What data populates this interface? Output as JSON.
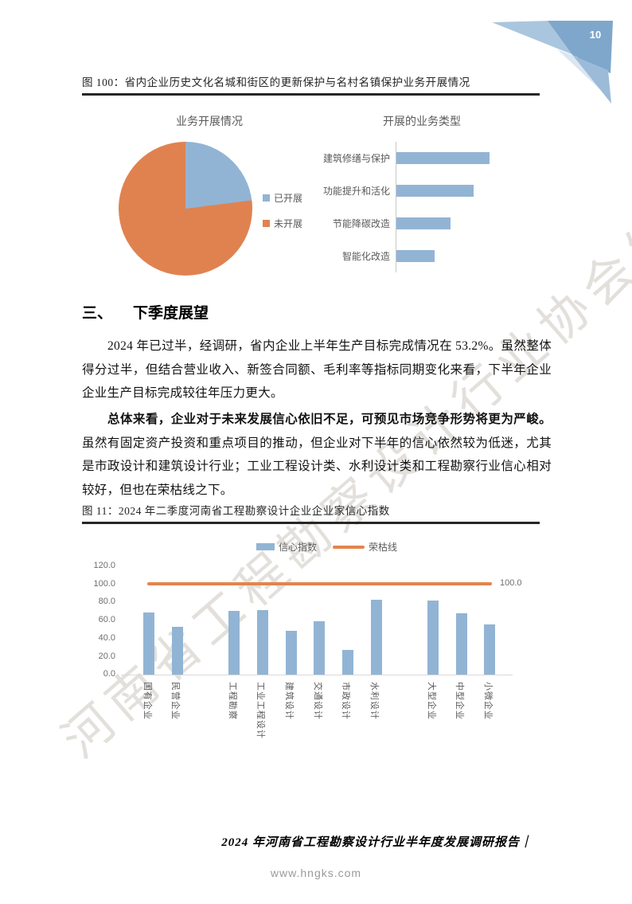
{
  "page": {
    "number": "10",
    "watermark": "河南省工程勘察设计行业协会发布",
    "footer_title": "2024 年河南省工程勘察设计行业半年度发展调研报告｜",
    "footer_url": "www.hngks.com"
  },
  "figure100": {
    "caption": "图 100：省内企业历史文化名城和街区的更新保护与名村名镇保护业务开展情况"
  },
  "section": {
    "number": "三、",
    "title": "下季度展望",
    "paragraph1": "2024 年已过半，经调研，省内企业上半年生产目标完成情况在 53.2%。虽然整体得分过半，但结合营业收入、新签合同额、毛利率等指标同期变化来看，下半年企业企业生产目标完成较往年压力更大。",
    "paragraph2_bold": "总体来看，企业对于未来发展信心依旧不足，可预见市场竞争形势将更为严峻。",
    "paragraph2_rest": "虽然有固定资产投资和重点项目的推动，但企业对下半年的信心依然较为低迷，尤其是市政设计和建筑设计行业；工业工程设计类、水利设计类和工程勘察行业信心相对较好，但也在荣枯线之下。"
  },
  "figure11": {
    "caption": "图 11：2024 年二季度河南省工程勘察设计企业企业家信心指数"
  },
  "colors": {
    "series_blue": "#92B4D4",
    "pie_orange": "#E0824F",
    "line_orange": "#E2854E",
    "corner_main_blue": "#7FA7CB",
    "corner_light_blue": "#AAC6DE",
    "corner_pale_blue": "#DBE6F1",
    "corner_mid_blue": "#9CBBD8"
  },
  "chart_data": [
    {
      "type": "pie",
      "title": "业务开展情况",
      "labels": [
        "已开展",
        "未开展"
      ],
      "values": [
        23,
        77
      ],
      "colors": [
        "#92B4D4",
        "#E0824F"
      ],
      "legend_position": "right"
    },
    {
      "type": "bar",
      "orientation": "horizontal",
      "title": "开展的业务类型",
      "categories": [
        "建筑修缮与保护",
        "功能提升和活化",
        "节能降碳改造",
        "智能化改造"
      ],
      "values_relative": [
        100,
        83,
        58,
        41
      ],
      "color": "#92B4D4",
      "value_axis_shown": false
    },
    {
      "type": "bar",
      "title": "2024年二季度河南省工程勘察设计企业企业家信心指数",
      "legend": [
        "信心指数",
        "荣枯线"
      ],
      "bar_color": "#92B4D4",
      "line_color": "#E2854E",
      "groups": [
        {
          "categories": [
            "国有企业",
            "民营企业"
          ],
          "values": [
            69.0,
            53.0
          ]
        },
        {
          "categories": [
            "工程勘察",
            "工业工程设计",
            "建筑设计",
            "交通设计",
            "市政设计",
            "水利设计"
          ],
          "values": [
            70.0,
            71.0,
            48.0,
            59.0,
            27.0,
            83.0
          ]
        },
        {
          "categories": [
            "大型企业",
            "中型企业",
            "小微企业"
          ],
          "values": [
            82.0,
            68.0,
            55.0
          ]
        }
      ],
      "reference_line": {
        "name": "荣枯线",
        "value": 100.0,
        "end_label": "100.0"
      },
      "y_ticks": [
        "120.0",
        "100.0",
        "80.0",
        "60.0",
        "40.0",
        "20.0",
        "0.0"
      ],
      "ylim": [
        0,
        120
      ],
      "legend_position": "top"
    }
  ]
}
